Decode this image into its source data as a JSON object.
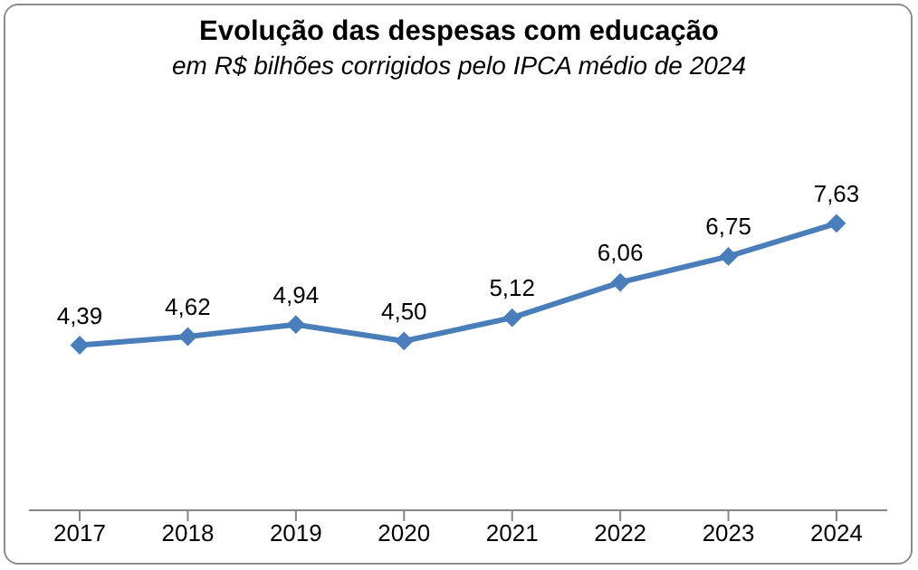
{
  "chart_data": {
    "type": "line",
    "title": "Evolução das despesas com educação",
    "subtitle": "em R$ bilhões corrigidos pelo IPCA médio de 2024",
    "categories": [
      "2017",
      "2018",
      "2019",
      "2020",
      "2021",
      "2022",
      "2023",
      "2024"
    ],
    "series": [
      {
        "color": "#4a7ebb",
        "values": [
          4.39,
          4.62,
          4.94,
          4.5,
          5.12,
          6.06,
          6.75,
          7.63
        ],
        "value_labels": [
          "4,39",
          "4,62",
          "4,94",
          "4,50",
          "5,12",
          "6,06",
          "6,75",
          "7,63"
        ]
      }
    ],
    "marker": "diamond"
  }
}
